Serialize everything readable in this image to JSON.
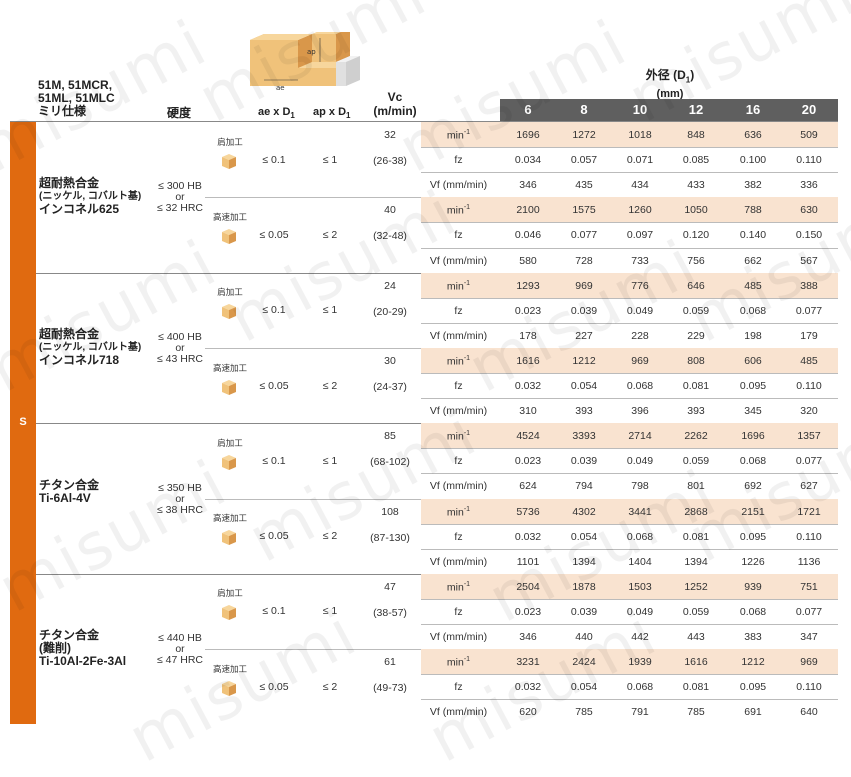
{
  "watermark": "misumi",
  "header": {
    "series_lines": [
      "51M, 51MCR,",
      "51ML, 51MLC",
      "ミリ仕様"
    ],
    "hardness": "硬度",
    "ae_label": "ae x D",
    "ap_label": "ap x D",
    "sub1": "1",
    "vc_line1": "Vc",
    "vc_line2": "(m/min)",
    "od_line1": "外径 (D",
    "od_line1_sub": "1",
    "od_line1_end": ")",
    "od_line2": "(mm)",
    "diagram_ap": "ap",
    "diagram_ae": "ae"
  },
  "diameters": [
    "6",
    "8",
    "10",
    "12",
    "16",
    "20"
  ],
  "iso_group": "S",
  "materials": [
    {
      "name_lines": [
        "超耐熱合金"
      ],
      "sub_line": "(ニッケル, コバルト基)",
      "name_line2": "インコネル625",
      "hardness": [
        "≤ 300 HB",
        "or",
        "≤ 32 HRC"
      ],
      "ops": [
        {
          "label": "肩加工",
          "ae": "≤ 0.1",
          "ap": "≤ 1",
          "vc": "32",
          "vc_range": "(26-38)",
          "rpm": [
            "1696",
            "1272",
            "1018",
            "848",
            "636",
            "509"
          ],
          "fz": [
            "0.034",
            "0.057",
            "0.071",
            "0.085",
            "0.100",
            "0.110"
          ],
          "vf": [
            "346",
            "435",
            "434",
            "433",
            "382",
            "336"
          ]
        },
        {
          "label": "高速加工",
          "ae": "≤ 0.05",
          "ap": "≤ 2",
          "vc": "40",
          "vc_range": "(32-48)",
          "rpm": [
            "2100",
            "1575",
            "1260",
            "1050",
            "788",
            "630"
          ],
          "fz": [
            "0.046",
            "0.077",
            "0.097",
            "0.120",
            "0.140",
            "0.150"
          ],
          "vf": [
            "580",
            "728",
            "733",
            "756",
            "662",
            "567"
          ]
        }
      ]
    },
    {
      "name_lines": [
        "超耐熱合金"
      ],
      "sub_line": "(ニッケル, コバルト基)",
      "name_line2": "インコネル718",
      "hardness": [
        "≤ 400 HB",
        "or",
        "≤ 43 HRC"
      ],
      "ops": [
        {
          "label": "肩加工",
          "ae": "≤ 0.1",
          "ap": "≤ 1",
          "vc": "24",
          "vc_range": "(20-29)",
          "rpm": [
            "1293",
            "969",
            "776",
            "646",
            "485",
            "388"
          ],
          "fz": [
            "0.023",
            "0.039",
            "0.049",
            "0.059",
            "0.068",
            "0.077"
          ],
          "vf": [
            "178",
            "227",
            "228",
            "229",
            "198",
            "179"
          ]
        },
        {
          "label": "高速加工",
          "ae": "≤ 0.05",
          "ap": "≤ 2",
          "vc": "30",
          "vc_range": "(24-37)",
          "rpm": [
            "1616",
            "1212",
            "969",
            "808",
            "606",
            "485"
          ],
          "fz": [
            "0.032",
            "0.054",
            "0.068",
            "0.081",
            "0.095",
            "0.110"
          ],
          "vf": [
            "310",
            "393",
            "396",
            "393",
            "345",
            "320"
          ]
        }
      ]
    },
    {
      "name_lines": [
        "チタン合金"
      ],
      "sub_line": "",
      "name_line2": "Ti-6Al-4V",
      "hardness": [
        "≤ 350 HB",
        "or",
        "≤ 38 HRC"
      ],
      "ops": [
        {
          "label": "肩加工",
          "ae": "≤ 0.1",
          "ap": "≤ 1",
          "vc": "85",
          "vc_range": "(68-102)",
          "rpm": [
            "4524",
            "3393",
            "2714",
            "2262",
            "1696",
            "1357"
          ],
          "fz": [
            "0.023",
            "0.039",
            "0.049",
            "0.059",
            "0.068",
            "0.077"
          ],
          "vf": [
            "624",
            "794",
            "798",
            "801",
            "692",
            "627"
          ]
        },
        {
          "label": "高速加工",
          "ae": "≤ 0.05",
          "ap": "≤ 2",
          "vc": "108",
          "vc_range": "(87-130)",
          "rpm": [
            "5736",
            "4302",
            "3441",
            "2868",
            "2151",
            "1721"
          ],
          "fz": [
            "0.032",
            "0.054",
            "0.068",
            "0.081",
            "0.095",
            "0.110"
          ],
          "vf": [
            "1101",
            "1394",
            "1404",
            "1394",
            "1226",
            "1136"
          ]
        }
      ]
    },
    {
      "name_lines": [
        "チタン合金",
        "(難削)"
      ],
      "sub_line": "",
      "name_line2": "Ti-10Al-2Fe-3Al",
      "hardness": [
        "≤ 440 HB",
        "or",
        "≤ 47 HRC"
      ],
      "ops": [
        {
          "label": "肩加工",
          "ae": "≤ 0.1",
          "ap": "≤ 1",
          "vc": "47",
          "vc_range": "(38-57)",
          "rpm": [
            "2504",
            "1878",
            "1503",
            "1252",
            "939",
            "751"
          ],
          "fz": [
            "0.023",
            "0.039",
            "0.049",
            "0.059",
            "0.068",
            "0.077"
          ],
          "vf": [
            "346",
            "440",
            "442",
            "443",
            "383",
            "347"
          ]
        },
        {
          "label": "高速加工",
          "ae": "≤ 0.05",
          "ap": "≤ 2",
          "vc": "61",
          "vc_range": "(49-73)",
          "rpm": [
            "3231",
            "2424",
            "1939",
            "1616",
            "1212",
            "969"
          ],
          "fz": [
            "0.032",
            "0.054",
            "0.068",
            "0.081",
            "0.095",
            "0.110"
          ],
          "vf": [
            "620",
            "785",
            "791",
            "785",
            "691",
            "640"
          ]
        }
      ]
    }
  ],
  "row_labels": {
    "rpm": "min",
    "rpm_sup": "-1",
    "fz": "fz",
    "vf": "Vf (mm/min)"
  },
  "colors": {
    "accent": "#e06a10",
    "band": "#f9e3d0",
    "header_bar": "#5f5f5f",
    "cube": "#f0b866"
  }
}
